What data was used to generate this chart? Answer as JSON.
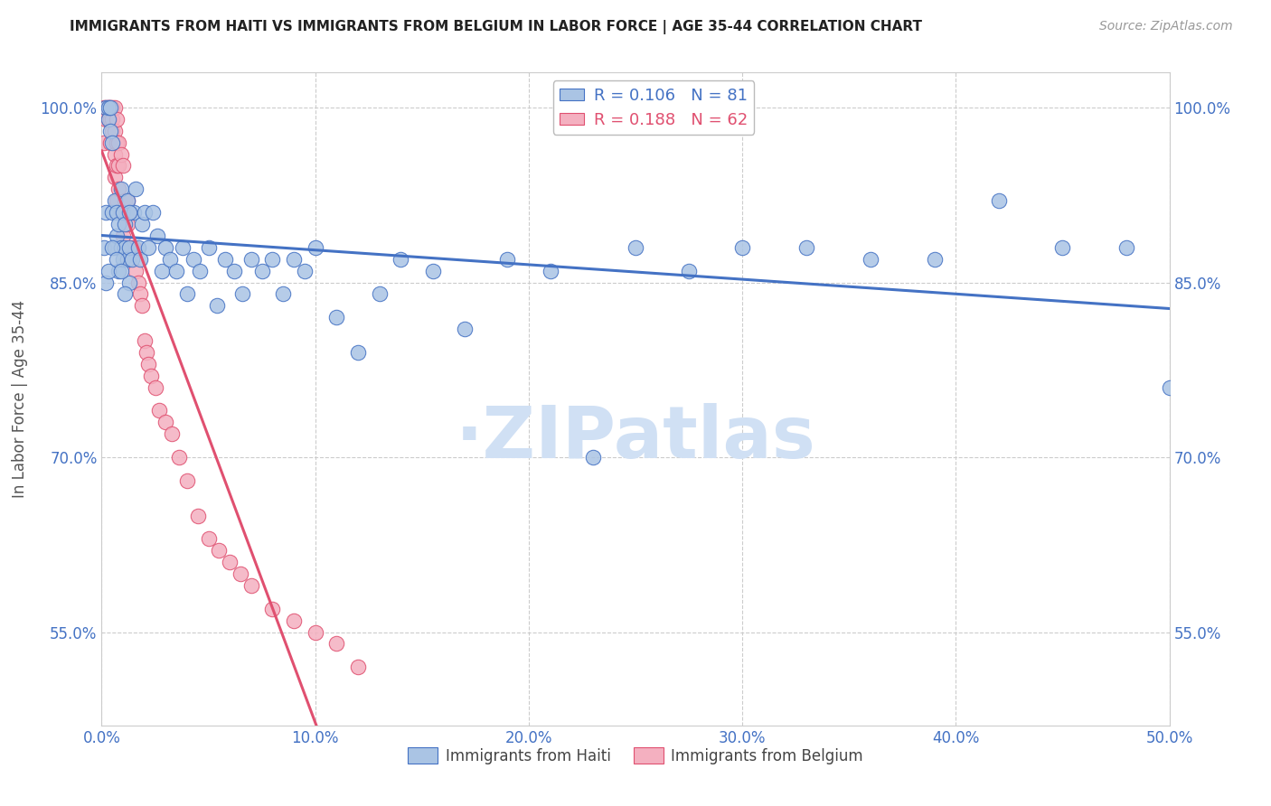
{
  "title": "IMMIGRANTS FROM HAITI VS IMMIGRANTS FROM BELGIUM IN LABOR FORCE | AGE 35-44 CORRELATION CHART",
  "source_text": "Source: ZipAtlas.com",
  "ylabel": "In Labor Force | Age 35-44",
  "xlim": [
    0.0,
    0.5
  ],
  "ylim": [
    0.47,
    1.03
  ],
  "yticks": [
    0.55,
    0.7,
    0.85,
    1.0
  ],
  "ytick_labels": [
    "55.0%",
    "70.0%",
    "85.0%",
    "100.0%"
  ],
  "xticks": [
    0.0,
    0.1,
    0.2,
    0.3,
    0.4,
    0.5
  ],
  "xtick_labels": [
    "0.0%",
    "10.0%",
    "20.0%",
    "30.0%",
    "40.0%",
    "50.0%"
  ],
  "haiti_R": 0.106,
  "haiti_N": 81,
  "belgium_R": 0.188,
  "belgium_N": 62,
  "haiti_color": "#aac4e4",
  "haiti_edge_color": "#4472c4",
  "haiti_line_color": "#4472c4",
  "belgium_color": "#f4b0c0",
  "belgium_edge_color": "#e05070",
  "belgium_line_color": "#e05070",
  "axis_label_color": "#4472c4",
  "title_color": "#222222",
  "grid_color": "#cccccc",
  "watermark_color": "#d0e0f4",
  "haiti_x": [
    0.001,
    0.002,
    0.002,
    0.003,
    0.003,
    0.004,
    0.004,
    0.005,
    0.005,
    0.006,
    0.006,
    0.007,
    0.007,
    0.008,
    0.008,
    0.009,
    0.009,
    0.01,
    0.01,
    0.011,
    0.011,
    0.012,
    0.012,
    0.013,
    0.013,
    0.014,
    0.015,
    0.016,
    0.017,
    0.018,
    0.019,
    0.02,
    0.022,
    0.024,
    0.026,
    0.028,
    0.03,
    0.032,
    0.035,
    0.038,
    0.04,
    0.043,
    0.046,
    0.05,
    0.054,
    0.058,
    0.062,
    0.066,
    0.07,
    0.075,
    0.08,
    0.085,
    0.09,
    0.095,
    0.1,
    0.11,
    0.12,
    0.13,
    0.14,
    0.155,
    0.17,
    0.19,
    0.21,
    0.23,
    0.25,
    0.275,
    0.3,
    0.33,
    0.36,
    0.39,
    0.42,
    0.45,
    0.48,
    0.5,
    0.002,
    0.003,
    0.005,
    0.007,
    0.009,
    0.011,
    0.013
  ],
  "haiti_y": [
    0.88,
    0.91,
    1.0,
    0.99,
    1.0,
    1.0,
    0.98,
    0.91,
    0.97,
    0.92,
    0.88,
    0.89,
    0.91,
    0.9,
    0.86,
    0.88,
    0.93,
    0.87,
    0.91,
    0.88,
    0.9,
    0.87,
    0.92,
    0.88,
    0.85,
    0.87,
    0.91,
    0.93,
    0.88,
    0.87,
    0.9,
    0.91,
    0.88,
    0.91,
    0.89,
    0.86,
    0.88,
    0.87,
    0.86,
    0.88,
    0.84,
    0.87,
    0.86,
    0.88,
    0.83,
    0.87,
    0.86,
    0.84,
    0.87,
    0.86,
    0.87,
    0.84,
    0.87,
    0.86,
    0.88,
    0.82,
    0.79,
    0.84,
    0.87,
    0.86,
    0.81,
    0.87,
    0.86,
    0.7,
    0.88,
    0.86,
    0.88,
    0.88,
    0.87,
    0.87,
    0.92,
    0.88,
    0.88,
    0.76,
    0.85,
    0.86,
    0.88,
    0.87,
    0.86,
    0.84,
    0.91
  ],
  "belgium_x": [
    0.001,
    0.001,
    0.002,
    0.002,
    0.003,
    0.003,
    0.003,
    0.004,
    0.004,
    0.004,
    0.005,
    0.005,
    0.005,
    0.006,
    0.006,
    0.006,
    0.006,
    0.007,
    0.007,
    0.007,
    0.007,
    0.008,
    0.008,
    0.008,
    0.009,
    0.009,
    0.01,
    0.01,
    0.01,
    0.011,
    0.011,
    0.012,
    0.012,
    0.013,
    0.013,
    0.014,
    0.015,
    0.016,
    0.017,
    0.018,
    0.019,
    0.02,
    0.021,
    0.022,
    0.023,
    0.025,
    0.027,
    0.03,
    0.033,
    0.036,
    0.04,
    0.045,
    0.05,
    0.055,
    0.06,
    0.065,
    0.07,
    0.08,
    0.09,
    0.1,
    0.11,
    0.12
  ],
  "belgium_y": [
    0.97,
    1.0,
    0.99,
    1.0,
    1.0,
    0.99,
    1.0,
    1.0,
    0.99,
    0.97,
    1.0,
    0.99,
    0.98,
    1.0,
    0.98,
    0.96,
    0.94,
    0.99,
    0.97,
    0.95,
    0.92,
    0.97,
    0.95,
    0.93,
    0.96,
    0.91,
    0.95,
    0.91,
    0.89,
    0.92,
    0.91,
    0.9,
    0.92,
    0.91,
    0.87,
    0.88,
    0.88,
    0.86,
    0.85,
    0.84,
    0.83,
    0.8,
    0.79,
    0.78,
    0.77,
    0.76,
    0.74,
    0.73,
    0.72,
    0.7,
    0.68,
    0.65,
    0.63,
    0.62,
    0.61,
    0.6,
    0.59,
    0.57,
    0.56,
    0.55,
    0.54,
    0.52
  ]
}
